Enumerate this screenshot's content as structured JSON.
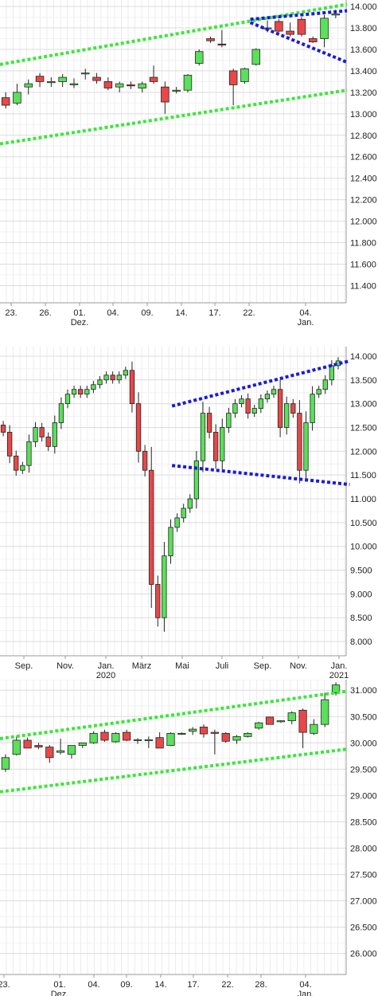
{
  "chart_data": [
    {
      "type": "candlestick",
      "title": "",
      "x_ticks": [
        [
          "23.",
          ""
        ],
        [
          "26.",
          ""
        ],
        [
          "01.",
          "Dez."
        ],
        [
          "04.",
          ""
        ],
        [
          "09.",
          ""
        ],
        [
          "14.",
          ""
        ],
        [
          "17.",
          ""
        ],
        [
          "22.",
          ""
        ],
        [
          "04.",
          "Jan."
        ]
      ],
      "y_ticks": [
        "11.400",
        "11.600",
        "11.800",
        "12.000",
        "12.200",
        "12.400",
        "12.600",
        "12.800",
        "13.000",
        "13.200",
        "13.400",
        "13.600",
        "13.800",
        "14.000"
      ],
      "ylim": [
        11.24,
        14.06
      ],
      "candles": [
        [
          13.15,
          13.2,
          13.05,
          13.08
        ],
        [
          13.1,
          13.28,
          13.08,
          13.2
        ],
        [
          13.25,
          13.32,
          13.18,
          13.28
        ],
        [
          13.35,
          13.38,
          13.25,
          13.3
        ],
        [
          13.29,
          13.34,
          13.25,
          13.3
        ],
        [
          13.3,
          13.37,
          13.25,
          13.34
        ],
        [
          13.27,
          13.33,
          13.24,
          13.28
        ],
        [
          13.38,
          13.42,
          13.32,
          13.38
        ],
        [
          13.34,
          13.38,
          13.28,
          13.31
        ],
        [
          13.3,
          13.34,
          13.22,
          13.24
        ],
        [
          13.25,
          13.3,
          13.2,
          13.28
        ],
        [
          13.27,
          13.3,
          13.23,
          13.26
        ],
        [
          13.24,
          13.3,
          13.2,
          13.28
        ],
        [
          13.34,
          13.45,
          13.28,
          13.3
        ],
        [
          13.25,
          13.3,
          13.0,
          13.11
        ],
        [
          13.22,
          13.25,
          13.19,
          13.22
        ],
        [
          13.22,
          13.37,
          13.2,
          13.36
        ],
        [
          13.47,
          13.6,
          13.45,
          13.58
        ],
        [
          13.7,
          13.72,
          13.66,
          13.68
        ],
        [
          13.65,
          13.78,
          13.62,
          13.64
        ],
        [
          13.4,
          13.42,
          13.08,
          13.27
        ],
        [
          13.3,
          13.43,
          13.28,
          13.42
        ],
        [
          13.46,
          13.61,
          13.45,
          13.6
        ],
        [
          13.8,
          13.87,
          13.76,
          13.8
        ],
        [
          13.86,
          13.88,
          13.76,
          13.77
        ],
        [
          13.77,
          13.85,
          13.72,
          13.74
        ],
        [
          13.88,
          13.9,
          13.72,
          13.74
        ],
        [
          13.7,
          13.72,
          13.66,
          13.67
        ],
        [
          13.7,
          13.92,
          13.62,
          13.89
        ],
        [
          13.92,
          13.97,
          13.89,
          13.93
        ]
      ],
      "trendlines": [
        {
          "color": "#3ce63c",
          "x": [
            -0.5,
            30
          ],
          "y": [
            13.46,
            14.02
          ]
        },
        {
          "color": "#3ce63c",
          "x": [
            -0.5,
            30
          ],
          "y": [
            12.72,
            13.22
          ]
        },
        {
          "color": "#1a1ad8",
          "x": [
            21.5,
            30
          ],
          "y": [
            13.88,
            13.96
          ]
        },
        {
          "color": "#1a1ad8",
          "x": [
            21.5,
            30
          ],
          "y": [
            13.85,
            13.48
          ]
        }
      ]
    },
    {
      "type": "candlestick",
      "title": "",
      "x_ticks": [
        [
          "Sep.",
          ""
        ],
        [
          "Nov.",
          ""
        ],
        [
          "Jan.",
          "2020"
        ],
        [
          "März",
          ""
        ],
        [
          "Mai",
          ""
        ],
        [
          "Juli",
          ""
        ],
        [
          "Sep.",
          ""
        ],
        [
          "Nov.",
          ""
        ],
        [
          "Jan.",
          "2021"
        ]
      ],
      "y_ticks": [
        "8.000",
        "8.500",
        "9.000",
        "9.500",
        "10.000",
        "10.500",
        "11.000",
        "11.500",
        "12.000",
        "12.500",
        "13.000",
        "13.500",
        "14.000"
      ],
      "ylim": [
        7.7,
        14.2
      ],
      "closes": [
        12.4,
        11.9,
        11.6,
        11.7,
        12.2,
        12.5,
        12.3,
        12.1,
        12.6,
        13.0,
        13.2,
        13.3,
        13.2,
        13.3,
        13.4,
        13.5,
        13.6,
        13.5,
        13.6,
        13.7,
        13.0,
        12.0,
        11.6,
        9.2,
        8.5,
        9.8,
        10.4,
        10.6,
        10.8,
        11.0,
        11.8,
        12.8,
        12.4,
        11.8,
        12.5,
        12.8,
        13.0,
        13.1,
        12.8,
        12.9,
        13.1,
        13.2,
        13.3,
        12.5,
        13.0,
        12.8,
        11.6,
        12.6,
        13.2,
        13.3,
        13.5,
        13.8,
        13.9
      ],
      "trendlines": [
        {
          "color": "#1a1ad8",
          "x": [
            26.2,
            53.8
          ],
          "y": [
            12.95,
            13.9
          ]
        },
        {
          "color": "#1a1ad8",
          "x": [
            26.2,
            53.8
          ],
          "y": [
            11.7,
            11.3
          ]
        }
      ]
    },
    {
      "type": "candlestick",
      "title": "",
      "x_ticks": [
        [
          "23.",
          ""
        ],
        [
          "01.",
          "Dez."
        ],
        [
          "04.",
          ""
        ],
        [
          "09.",
          ""
        ],
        [
          "14.",
          ""
        ],
        [
          "17.",
          ""
        ],
        [
          "22.",
          ""
        ],
        [
          "28.",
          ""
        ],
        [
          "04.",
          "Jan."
        ]
      ],
      "y_ticks": [
        "26.000",
        "26.500",
        "27.000",
        "27.500",
        "28.000",
        "28.500",
        "29.000",
        "29.500",
        "30.000",
        "30.500",
        "31.000"
      ],
      "ylim": [
        25.6,
        31.2
      ],
      "candles": [
        [
          29.5,
          29.78,
          29.45,
          29.72
        ],
        [
          29.78,
          30.12,
          29.76,
          30.05
        ],
        [
          30.05,
          30.1,
          29.9,
          29.9
        ],
        [
          29.95,
          30.0,
          29.88,
          29.92
        ],
        [
          29.92,
          29.96,
          29.62,
          29.72
        ],
        [
          29.82,
          30.08,
          29.78,
          29.85
        ],
        [
          29.78,
          29.95,
          29.7,
          29.95
        ],
        [
          29.95,
          30.0,
          29.9,
          30.0
        ],
        [
          30.0,
          30.22,
          29.98,
          30.18
        ],
        [
          30.2,
          30.25,
          30.02,
          30.05
        ],
        [
          30.02,
          30.2,
          30.0,
          30.18
        ],
        [
          30.2,
          30.25,
          30.03,
          30.05
        ],
        [
          30.05,
          30.09,
          29.98,
          30.06
        ],
        [
          30.04,
          30.12,
          29.9,
          30.06
        ],
        [
          30.1,
          30.2,
          29.9,
          29.9
        ],
        [
          29.95,
          30.2,
          29.94,
          30.18
        ],
        [
          30.18,
          30.2,
          30.15,
          30.18
        ],
        [
          30.22,
          30.3,
          30.15,
          30.26
        ],
        [
          30.3,
          30.35,
          30.1,
          30.17
        ],
        [
          30.2,
          30.25,
          29.78,
          30.18
        ],
        [
          30.18,
          30.2,
          30.0,
          30.03
        ],
        [
          30.05,
          30.15,
          29.98,
          30.12
        ],
        [
          30.12,
          30.2,
          30.1,
          30.18
        ],
        [
          30.28,
          30.4,
          30.25,
          30.38
        ],
        [
          30.49,
          30.5,
          30.35,
          30.35
        ],
        [
          30.4,
          30.43,
          30.38,
          30.42
        ],
        [
          30.42,
          30.6,
          30.35,
          30.57
        ],
        [
          30.62,
          30.65,
          29.9,
          30.2
        ],
        [
          30.18,
          30.45,
          30.15,
          30.35
        ],
        [
          30.35,
          30.95,
          30.3,
          30.82
        ],
        [
          30.95,
          31.15,
          30.9,
          31.1
        ]
      ],
      "trendlines": [
        {
          "color": "#3ce63c",
          "x": [
            -0.5,
            31
          ],
          "y": [
            30.08,
            30.98
          ]
        },
        {
          "color": "#3ce63c",
          "x": [
            -0.5,
            31
          ],
          "y": [
            29.07,
            29.88
          ]
        }
      ]
    }
  ]
}
